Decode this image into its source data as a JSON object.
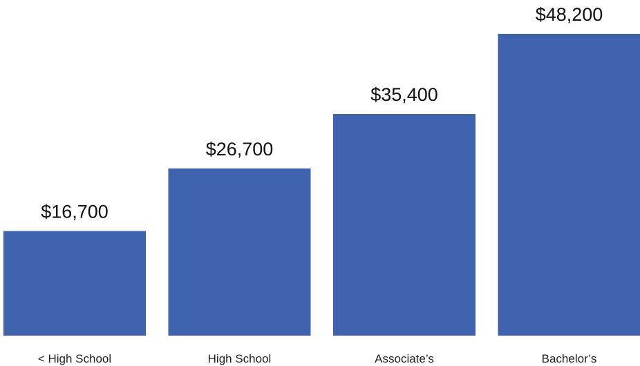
{
  "chart_data": {
    "type": "bar",
    "categories": [
      "< High School",
      "High School",
      "Associate’s",
      "Bachelor’s"
    ],
    "values": [
      16700,
      26700,
      35400,
      48200
    ],
    "data_labels": [
      "$16,700",
      "$26,700",
      "$35,400",
      "$48,200"
    ],
    "title": "",
    "xlabel": "",
    "ylabel": "",
    "ylim": [
      0,
      48200
    ],
    "grid": false,
    "legend": "none",
    "bar_color": "#3e62ad"
  }
}
